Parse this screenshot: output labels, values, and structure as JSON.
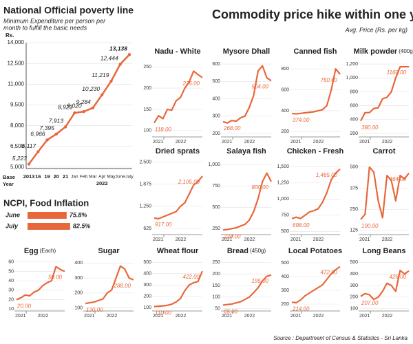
{
  "poverty": {
    "title": "National Official poverty line",
    "subtitle": [
      "Minimum Expenditure per person per",
      "month to fulfill the basic needs"
    ],
    "unit": "Rs.",
    "color": "#e8673a",
    "categories": [
      "2013",
      "16",
      "19",
      "20",
      "21",
      "Jan",
      "Feb",
      "Mar",
      "Apr",
      "May",
      "June",
      "July"
    ],
    "values": [
      5223,
      6117,
      6966,
      7395,
      7913,
      8923,
      9020,
      9284,
      10230,
      11219,
      12444,
      13138
    ],
    "value_labels": [
      "5,223",
      "6,117",
      "6,966",
      "7,395",
      "7,913",
      "8,923",
      "9,020",
      "9,284",
      "10,230",
      "11,219",
      "12,444",
      "13,138"
    ],
    "year_label": "2022",
    "base_label": [
      "Base",
      "Year"
    ],
    "ylim": [
      4900,
      14000
    ],
    "yticks": [
      {
        "value": 5000,
        "label": "5,000"
      },
      {
        "value": 6500,
        "label": "6,500"
      },
      {
        "value": 8000,
        "label": "8,000"
      },
      {
        "value": 9500,
        "label": "9,500"
      },
      {
        "value": 11000,
        "label": "11,000"
      },
      {
        "value": 12500,
        "label": "12,500"
      },
      {
        "value": 14000,
        "label": "14,000"
      }
    ]
  },
  "ncpi": {
    "title": "NCPI, Food Inflation",
    "categories": [
      "June",
      "July"
    ],
    "values": [
      75.8,
      82.5
    ],
    "value_labels": [
      "75.8%",
      "82.5%"
    ],
    "color": "#e8673a"
  },
  "header": {
    "title": "Commodity price hike within one year",
    "subtitle": "Avg. Price (Rs. per kg)"
  },
  "x_labels": [
    "2021",
    "2022"
  ],
  "charts": [
    {
      "type": "line",
      "title": "Nadu - White",
      "ylim": [
        85,
        265
      ],
      "yticks": [
        100,
        150,
        200,
        250
      ],
      "values": [
        118,
        135,
        128,
        150,
        148,
        170,
        178,
        200,
        215,
        240,
        232,
        225
      ],
      "value_labels": [
        "118.00",
        null,
        null,
        null,
        null,
        null,
        null,
        null,
        null,
        null,
        null,
        "225.00"
      ]
    },
    {
      "type": "line",
      "title": "Mysore Dhall",
      "ylim": [
        180,
        620
      ],
      "yticks": [
        200,
        300,
        400,
        500,
        600
      ],
      "values": [
        268,
        260,
        275,
        270,
        290,
        300,
        350,
        420,
        560,
        590,
        520,
        504
      ],
      "value_labels": [
        "268.00",
        null,
        null,
        null,
        null,
        null,
        null,
        null,
        null,
        null,
        null,
        "504.00"
      ]
    },
    {
      "type": "line",
      "title": "Canned fish",
      "ylim": [
        150,
        880
      ],
      "yticks": [
        200,
        400,
        600,
        800
      ],
      "values": [
        374,
        370,
        375,
        380,
        385,
        390,
        400,
        410,
        450,
        600,
        800,
        750
      ],
      "value_labels": [
        "374.00",
        null,
        null,
        null,
        null,
        null,
        null,
        null,
        null,
        null,
        null,
        "750.00"
      ]
    },
    {
      "type": "line",
      "title": "Milk powder",
      "title_note": "(400g)",
      "ylim": [
        150,
        1250
      ],
      "yticks": [
        200,
        400,
        600,
        800,
        {
          "value": 1000,
          "label": "1,000"
        },
        {
          "value": 1200,
          "label": "1,200"
        }
      ],
      "values": [
        380,
        500,
        500,
        560,
        570,
        700,
        720,
        800,
        1000,
        1160,
        1160,
        1160
      ],
      "value_labels": [
        "380.00",
        null,
        null,
        null,
        null,
        null,
        null,
        null,
        null,
        null,
        null,
        "1160.00"
      ]
    },
    {
      "type": "line",
      "title": "Dried sprats",
      "ylim": [
        450,
        2550
      ],
      "yticks": [
        625,
        {
          "value": 1250,
          "label": "1,250"
        },
        {
          "value": 1875,
          "label": "1,875"
        },
        {
          "value": 2500,
          "label": "2,500"
        }
      ],
      "values": [
        917,
        900,
        950,
        1000,
        1050,
        1100,
        1250,
        1350,
        1600,
        1850,
        1950,
        2105
      ],
      "value_labels": [
        "917.00",
        null,
        null,
        null,
        null,
        null,
        null,
        null,
        null,
        null,
        null,
        "2,105.00"
      ]
    },
    {
      "type": "line",
      "title": "Salaya fish",
      "ylim": [
        180,
        1050
      ],
      "yticks": [
        250,
        500,
        750,
        {
          "value": 1000,
          "label": "1,000"
        }
      ],
      "values": [
        234,
        240,
        250,
        260,
        280,
        300,
        350,
        450,
        600,
        800,
        900,
        800
      ],
      "value_labels": [
        "234.00",
        null,
        null,
        null,
        null,
        null,
        null,
        null,
        null,
        null,
        null,
        "800.00"
      ]
    },
    {
      "type": "line",
      "title": "Chicken - Fresh",
      "ylim": [
        450,
        1600
      ],
      "yticks": [
        500,
        750,
        {
          "value": 1000,
          "label": "1,000"
        },
        {
          "value": 1250,
          "label": "1,250"
        },
        {
          "value": 1500,
          "label": "1,500"
        }
      ],
      "values": [
        698,
        720,
        700,
        750,
        800,
        820,
        850,
        950,
        1100,
        1300,
        1400,
        1465
      ],
      "value_labels": [
        "698.00",
        null,
        null,
        null,
        null,
        null,
        null,
        null,
        null,
        null,
        null,
        "1,465.00"
      ]
    },
    {
      "type": "line",
      "title": "Carrot",
      "ylim": [
        100,
        540
      ],
      "yticks": [
        125,
        250,
        375,
        500
      ],
      "values": [
        190,
        220,
        500,
        470,
        300,
        200,
        450,
        420,
        300,
        450,
        430,
        464
      ],
      "value_labels": [
        "190.00",
        null,
        null,
        null,
        null,
        null,
        null,
        null,
        null,
        null,
        null,
        "464.00"
      ]
    },
    {
      "type": "line",
      "title": "Egg",
      "title_note": "(Each)",
      "ylim": [
        8,
        62
      ],
      "yticks": [
        10,
        20,
        30,
        40,
        50,
        60
      ],
      "values": [
        20,
        22,
        25,
        24,
        28,
        30,
        35,
        38,
        40,
        55,
        52,
        50
      ],
      "value_labels": [
        "20.00",
        null,
        null,
        null,
        null,
        null,
        null,
        null,
        null,
        null,
        null,
        "50.00"
      ]
    },
    {
      "type": "line",
      "title": "Sugar",
      "ylim": [
        80,
        420
      ],
      "yticks": [
        100,
        200,
        300,
        400
      ],
      "values": [
        130,
        135,
        140,
        150,
        160,
        200,
        220,
        300,
        380,
        360,
        300,
        288
      ],
      "value_labels": [
        "130.00",
        null,
        null,
        null,
        null,
        null,
        null,
        null,
        null,
        null,
        null,
        "288.00"
      ]
    },
    {
      "type": "line",
      "title": "Wheat flour",
      "ylim": [
        70,
        520
      ],
      "yticks": [
        100,
        200,
        300,
        400,
        500
      ],
      "values": [
        110,
        112,
        115,
        120,
        130,
        150,
        180,
        250,
        300,
        320,
        330,
        422
      ],
      "value_labels": [
        "110.00",
        null,
        null,
        null,
        null,
        null,
        null,
        null,
        null,
        null,
        null,
        "422.00"
      ]
    },
    {
      "type": "line",
      "title": "Bread",
      "title_note": "(450g)",
      "ylim": [
        40,
        260
      ],
      "yticks": [
        50,
        100,
        150,
        200,
        250
      ],
      "values": [
        65,
        68,
        70,
        75,
        80,
        90,
        100,
        120,
        140,
        170,
        190,
        195
      ],
      "value_labels": [
        "65.00",
        null,
        null,
        null,
        null,
        null,
        null,
        null,
        null,
        null,
        null,
        "195.00"
      ]
    },
    {
      "type": "line",
      "title": "Local Potatoes",
      "ylim": [
        150,
        520
      ],
      "yticks": [
        200,
        300,
        400,
        500
      ],
      "values": [
        214,
        210,
        230,
        260,
        280,
        300,
        320,
        340,
        380,
        420,
        450,
        472
      ],
      "value_labels": [
        "214.00",
        null,
        null,
        null,
        null,
        null,
        null,
        null,
        null,
        null,
        null,
        "472.00"
      ]
    },
    {
      "type": "line",
      "title": "Long Beans",
      "ylim": [
        80,
        520
      ],
      "yticks": [
        100,
        200,
        300,
        400,
        500
      ],
      "values": [
        207,
        230,
        220,
        180,
        200,
        250,
        320,
        300,
        250,
        430,
        400,
        426
      ],
      "value_labels": [
        "207.00",
        null,
        null,
        null,
        null,
        null,
        null,
        null,
        null,
        null,
        null,
        "426.00"
      ]
    }
  ],
  "source": "Source : Department of Census & Statistics - Sri Lanka"
}
